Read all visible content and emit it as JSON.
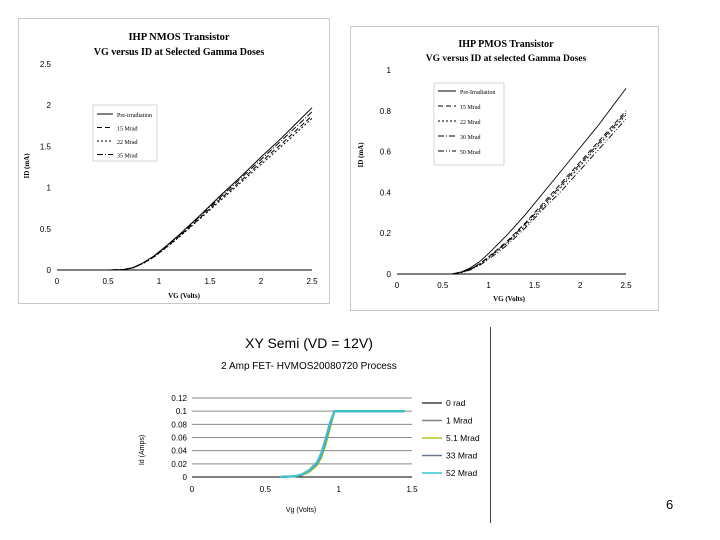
{
  "page": {
    "page_number": "6"
  },
  "chart_data": [
    {
      "id": "nmos",
      "type": "line",
      "title": "IHP NMOS Transistor",
      "subtitle": "VG versus ID at Selected Gamma Doses",
      "xlabel": "VG (Volts)",
      "ylabel": "ID (mA)",
      "xlim": [
        0,
        2.5
      ],
      "ylim": [
        0,
        2.5
      ],
      "xticks": [
        "0",
        "0.5",
        "1",
        "1.5",
        "2",
        "2.5"
      ],
      "yticks": [
        "0",
        "0.5",
        "1",
        "1.5",
        "2",
        "2.5"
      ],
      "grid": false,
      "legend_position": "top-left",
      "series": [
        {
          "name": "Pre-irradiation",
          "color": "#000000",
          "dash": "solid",
          "x": [
            0,
            0.5,
            0.65,
            0.75,
            0.85,
            0.95,
            1.05,
            1.2,
            1.4,
            1.6,
            1.8,
            2.0,
            2.2,
            2.5
          ],
          "y": [
            0,
            0,
            0.005,
            0.03,
            0.09,
            0.17,
            0.27,
            0.43,
            0.66,
            0.9,
            1.13,
            1.37,
            1.6,
            1.97
          ]
        },
        {
          "name": "15 Mrad",
          "color": "#000000",
          "dash": "dash",
          "x": [
            0,
            0.5,
            0.65,
            0.75,
            0.85,
            0.95,
            1.05,
            1.2,
            1.4,
            1.6,
            1.8,
            2.0,
            2.2,
            2.5
          ],
          "y": [
            0,
            0,
            0.004,
            0.028,
            0.085,
            0.16,
            0.255,
            0.41,
            0.63,
            0.86,
            1.08,
            1.31,
            1.53,
            1.87
          ]
        },
        {
          "name": "22 Mrad",
          "color": "#000000",
          "dash": "dot",
          "x": [
            0,
            0.5,
            0.65,
            0.75,
            0.85,
            0.95,
            1.05,
            1.2,
            1.4,
            1.6,
            1.8,
            2.0,
            2.2,
            2.5
          ],
          "y": [
            0,
            0,
            0.004,
            0.027,
            0.082,
            0.155,
            0.25,
            0.4,
            0.62,
            0.84,
            1.06,
            1.28,
            1.5,
            1.84
          ]
        },
        {
          "name": "35 Mrad",
          "color": "#000000",
          "dash": "dashdot",
          "x": [
            0,
            0.5,
            0.65,
            0.75,
            0.85,
            0.95,
            1.05,
            1.2,
            1.4,
            1.6,
            1.8,
            2.0,
            2.2,
            2.5
          ],
          "y": [
            0,
            0,
            0.005,
            0.03,
            0.09,
            0.165,
            0.265,
            0.42,
            0.65,
            0.88,
            1.11,
            1.34,
            1.57,
            1.92
          ]
        }
      ]
    },
    {
      "id": "pmos",
      "type": "line",
      "title": "IHP PMOS Transistor",
      "subtitle": "VG versus ID at selected Gamma Doses",
      "xlabel": "VG (Volts)",
      "ylabel": "ID (mA)",
      "xlim": [
        0,
        2.5
      ],
      "ylim": [
        0,
        1
      ],
      "xticks": [
        "0",
        "0.5",
        "1",
        "1.5",
        "2",
        "2.5"
      ],
      "yticks": [
        "0",
        "0.2",
        "0.4",
        "0.6",
        "0.8",
        "1"
      ],
      "grid": false,
      "legend_position": "top-left",
      "series": [
        {
          "name": "Pre-Irradiation",
          "color": "#000000",
          "dash": "solid",
          "x": [
            0,
            0.6,
            0.7,
            0.8,
            0.9,
            1.0,
            1.2,
            1.4,
            1.6,
            1.8,
            2.0,
            2.2,
            2.4,
            2.5
          ],
          "y": [
            0,
            0,
            0.01,
            0.03,
            0.06,
            0.1,
            0.19,
            0.29,
            0.4,
            0.51,
            0.62,
            0.73,
            0.85,
            0.91
          ]
        },
        {
          "name": "15 Mrad",
          "color": "#000000",
          "dash": "dash",
          "x": [
            0,
            0.6,
            0.7,
            0.8,
            0.9,
            1.0,
            1.2,
            1.4,
            1.6,
            1.8,
            2.0,
            2.2,
            2.4,
            2.5
          ],
          "y": [
            0,
            0,
            0.008,
            0.025,
            0.05,
            0.085,
            0.16,
            0.25,
            0.35,
            0.45,
            0.55,
            0.65,
            0.75,
            0.8
          ]
        },
        {
          "name": "22 Mrad",
          "color": "#000000",
          "dash": "dot",
          "x": [
            0,
            0.6,
            0.7,
            0.8,
            0.9,
            1.0,
            1.2,
            1.4,
            1.6,
            1.8,
            2.0,
            2.2,
            2.4,
            2.5
          ],
          "y": [
            0,
            0,
            0.007,
            0.022,
            0.045,
            0.078,
            0.15,
            0.235,
            0.33,
            0.43,
            0.53,
            0.63,
            0.73,
            0.78
          ]
        },
        {
          "name": "30 Mrad",
          "color": "#000000",
          "dash": "dashdot",
          "x": [
            0,
            0.6,
            0.7,
            0.8,
            0.9,
            1.0,
            1.2,
            1.4,
            1.6,
            1.8,
            2.0,
            2.2,
            2.4,
            2.5
          ],
          "y": [
            0,
            0,
            0.008,
            0.024,
            0.048,
            0.082,
            0.155,
            0.245,
            0.34,
            0.44,
            0.54,
            0.64,
            0.74,
            0.79
          ]
        },
        {
          "name": "50 Mrad",
          "color": "#000000",
          "dash": "dashdotdot",
          "x": [
            0,
            0.6,
            0.7,
            0.8,
            0.9,
            1.0,
            1.2,
            1.4,
            1.6,
            1.8,
            2.0,
            2.2,
            2.4,
            2.5
          ],
          "y": [
            0,
            0,
            0.006,
            0.02,
            0.042,
            0.072,
            0.14,
            0.225,
            0.32,
            0.41,
            0.51,
            0.61,
            0.71,
            0.76
          ]
        }
      ]
    },
    {
      "id": "xy",
      "type": "line",
      "title": "XY Semi (VD = 12V)",
      "subtitle": "2 Amp FET- HVMOS20080720 Process",
      "xlabel": "Vg (Volts)",
      "ylabel": "Id (Amps)",
      "xlim": [
        0,
        1.5
      ],
      "ylim": [
        0,
        0.12
      ],
      "xticks": [
        "0",
        "0.5",
        "1",
        "1.5"
      ],
      "yticks": [
        "0",
        "0.02",
        "0.04",
        "0.06",
        "0.08",
        "0.1",
        "0.12"
      ],
      "grid": true,
      "legend_position": "right",
      "series": [
        {
          "name": "0 rad",
          "color": "#404040",
          "dash": "solid",
          "x": [
            0.6,
            0.7,
            0.75,
            0.8,
            0.85,
            0.88,
            0.91,
            0.94,
            0.97,
            1.0,
            1.25,
            1.45
          ],
          "y": [
            0,
            0.001,
            0.003,
            0.008,
            0.018,
            0.03,
            0.05,
            0.075,
            0.1,
            0.1,
            0.1,
            0.1
          ]
        },
        {
          "name": "1 Mrad",
          "color": "#808080",
          "dash": "solid",
          "x": [
            0.6,
            0.7,
            0.75,
            0.8,
            0.85,
            0.88,
            0.91,
            0.94,
            0.97,
            1.0,
            1.25,
            1.45
          ],
          "y": [
            0,
            0.001,
            0.003,
            0.009,
            0.019,
            0.032,
            0.052,
            0.078,
            0.1,
            0.1,
            0.1,
            0.1
          ]
        },
        {
          "name": "5.1 Mrad",
          "color": "#b5c62a",
          "dash": "solid",
          "x": [
            0.6,
            0.7,
            0.75,
            0.8,
            0.85,
            0.88,
            0.91,
            0.94,
            0.97,
            1.0,
            1.25,
            1.45
          ],
          "y": [
            0,
            0.001,
            0.003,
            0.008,
            0.018,
            0.031,
            0.051,
            0.076,
            0.1,
            0.1,
            0.1,
            0.1
          ]
        },
        {
          "name": "33 Mrad",
          "color": "#6b7a8f",
          "dash": "solid",
          "x": [
            0.6,
            0.7,
            0.75,
            0.8,
            0.85,
            0.88,
            0.91,
            0.94,
            0.97,
            1.0,
            1.25,
            1.45
          ],
          "y": [
            0,
            0.001,
            0.004,
            0.01,
            0.02,
            0.034,
            0.055,
            0.08,
            0.1,
            0.1,
            0.1,
            0.1
          ]
        },
        {
          "name": "52 Mrad",
          "color": "#33c6d6",
          "dash": "solid",
          "x": [
            0.6,
            0.7,
            0.75,
            0.8,
            0.85,
            0.88,
            0.91,
            0.94,
            0.97,
            1.0,
            1.25,
            1.45
          ],
          "y": [
            0,
            0.001,
            0.004,
            0.011,
            0.022,
            0.036,
            0.058,
            0.083,
            0.1,
            0.1,
            0.1,
            0.1
          ]
        }
      ]
    }
  ]
}
